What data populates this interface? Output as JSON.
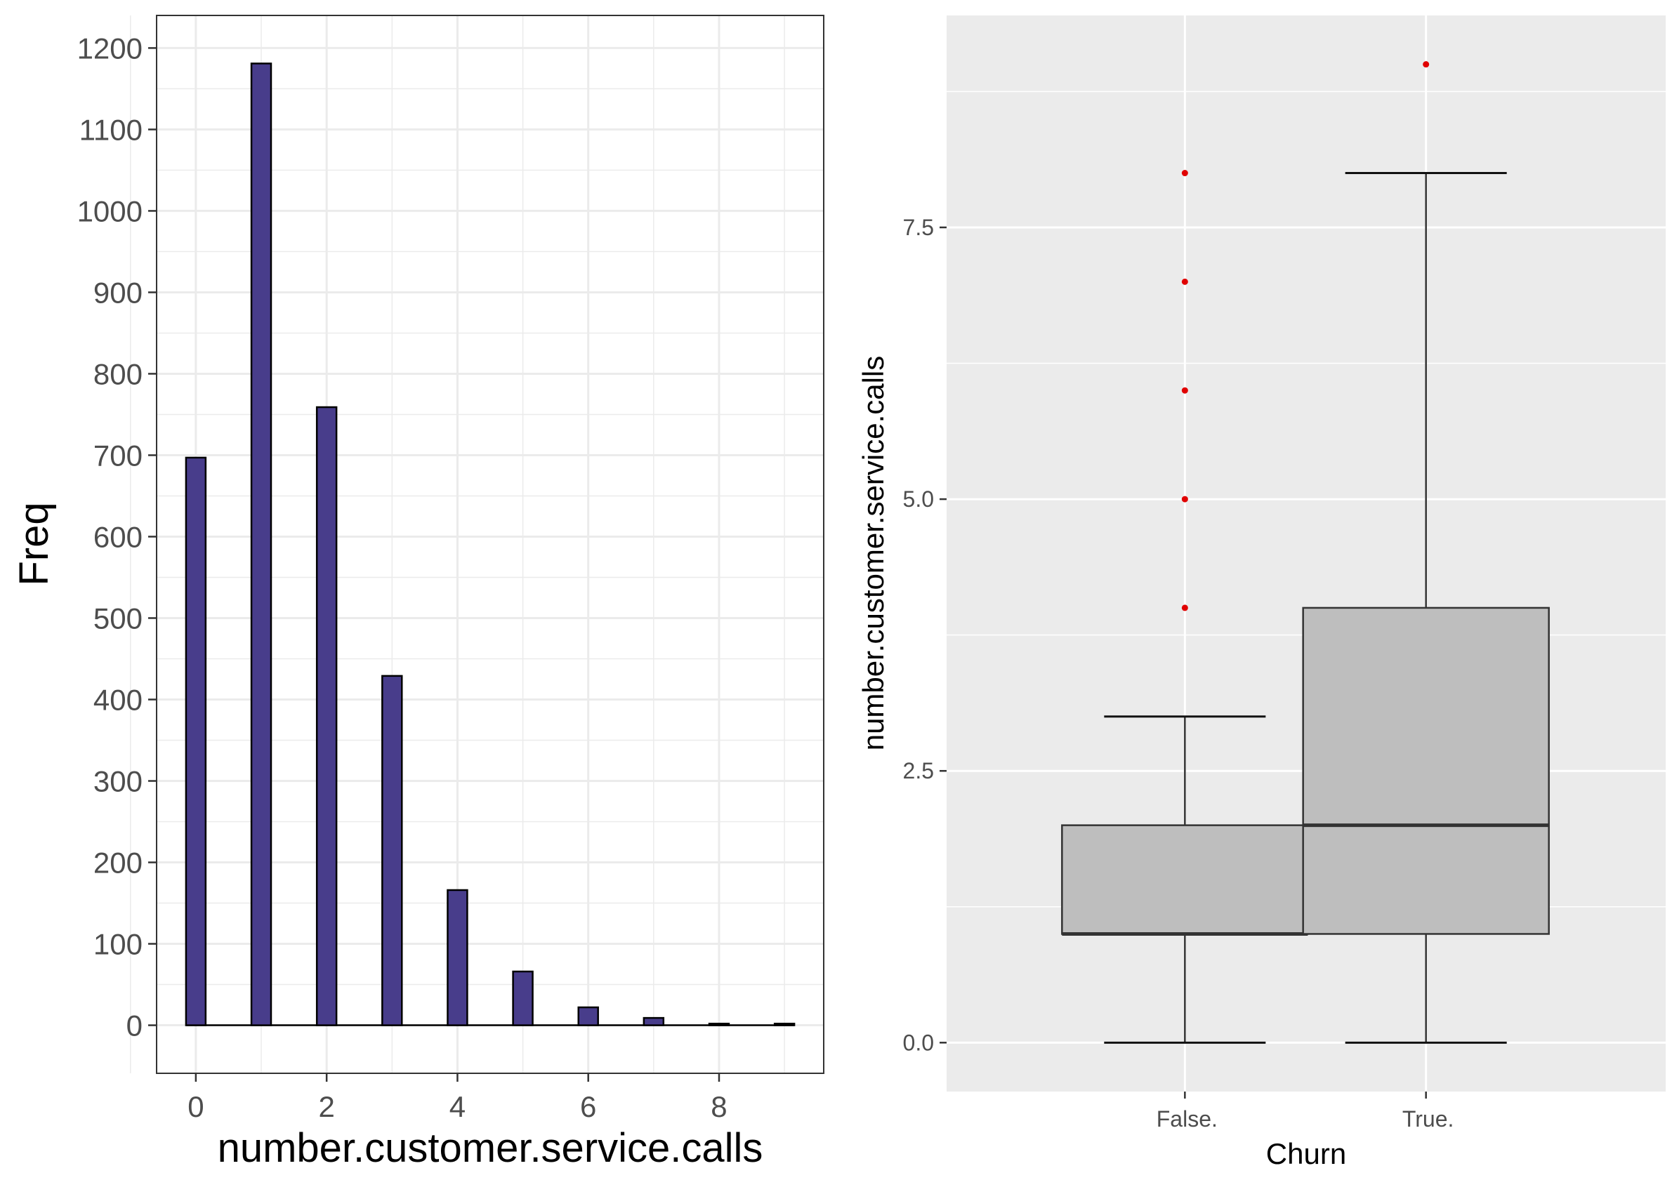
{
  "chart_data": [
    {
      "type": "bar",
      "title": "",
      "xlabel": "number.customer.service.calls",
      "ylabel": "Freq",
      "x": [
        0,
        1,
        2,
        3,
        4,
        5,
        6,
        7,
        8,
        9
      ],
      "values": [
        697,
        1181,
        759,
        429,
        166,
        66,
        22,
        9,
        2,
        2
      ],
      "xlim": [
        -0.6,
        9.6
      ],
      "ylim": [
        -59,
        1240
      ],
      "x_ticks": [
        "0",
        "2",
        "4",
        "6",
        "8"
      ],
      "y_ticks": [
        "0",
        "100",
        "200",
        "300",
        "400",
        "500",
        "600",
        "700",
        "800",
        "900",
        "1000",
        "1100",
        "1200"
      ],
      "grid": true,
      "colors": {
        "bar_fill": "#483d8b",
        "bar_stroke": "#000000",
        "grid": "#ebebeb",
        "panel_border": "#333333"
      }
    },
    {
      "type": "box",
      "title": "",
      "xlabel": "Churn",
      "ylabel": "number.customer.service.calls",
      "categories": [
        "False.",
        "True."
      ],
      "boxes": [
        {
          "min": 0,
          "q1": 1,
          "median": 1,
          "q3": 2,
          "max": 3,
          "outliers": [
            4,
            5,
            6,
            7,
            8
          ]
        },
        {
          "min": 0,
          "q1": 1,
          "median": 2,
          "q3": 4,
          "max": 8,
          "outliers": [
            9
          ]
        }
      ],
      "ylim": [
        -0.45,
        9.45
      ],
      "y_ticks": [
        "0.0",
        "2.5",
        "5.0",
        "7.5"
      ],
      "grid": true,
      "colors": {
        "panel_bg": "#ebebeb",
        "grid": "#ffffff",
        "box_fill": "#bebebe",
        "outlier": "#e00000",
        "line": "#333333"
      }
    }
  ]
}
